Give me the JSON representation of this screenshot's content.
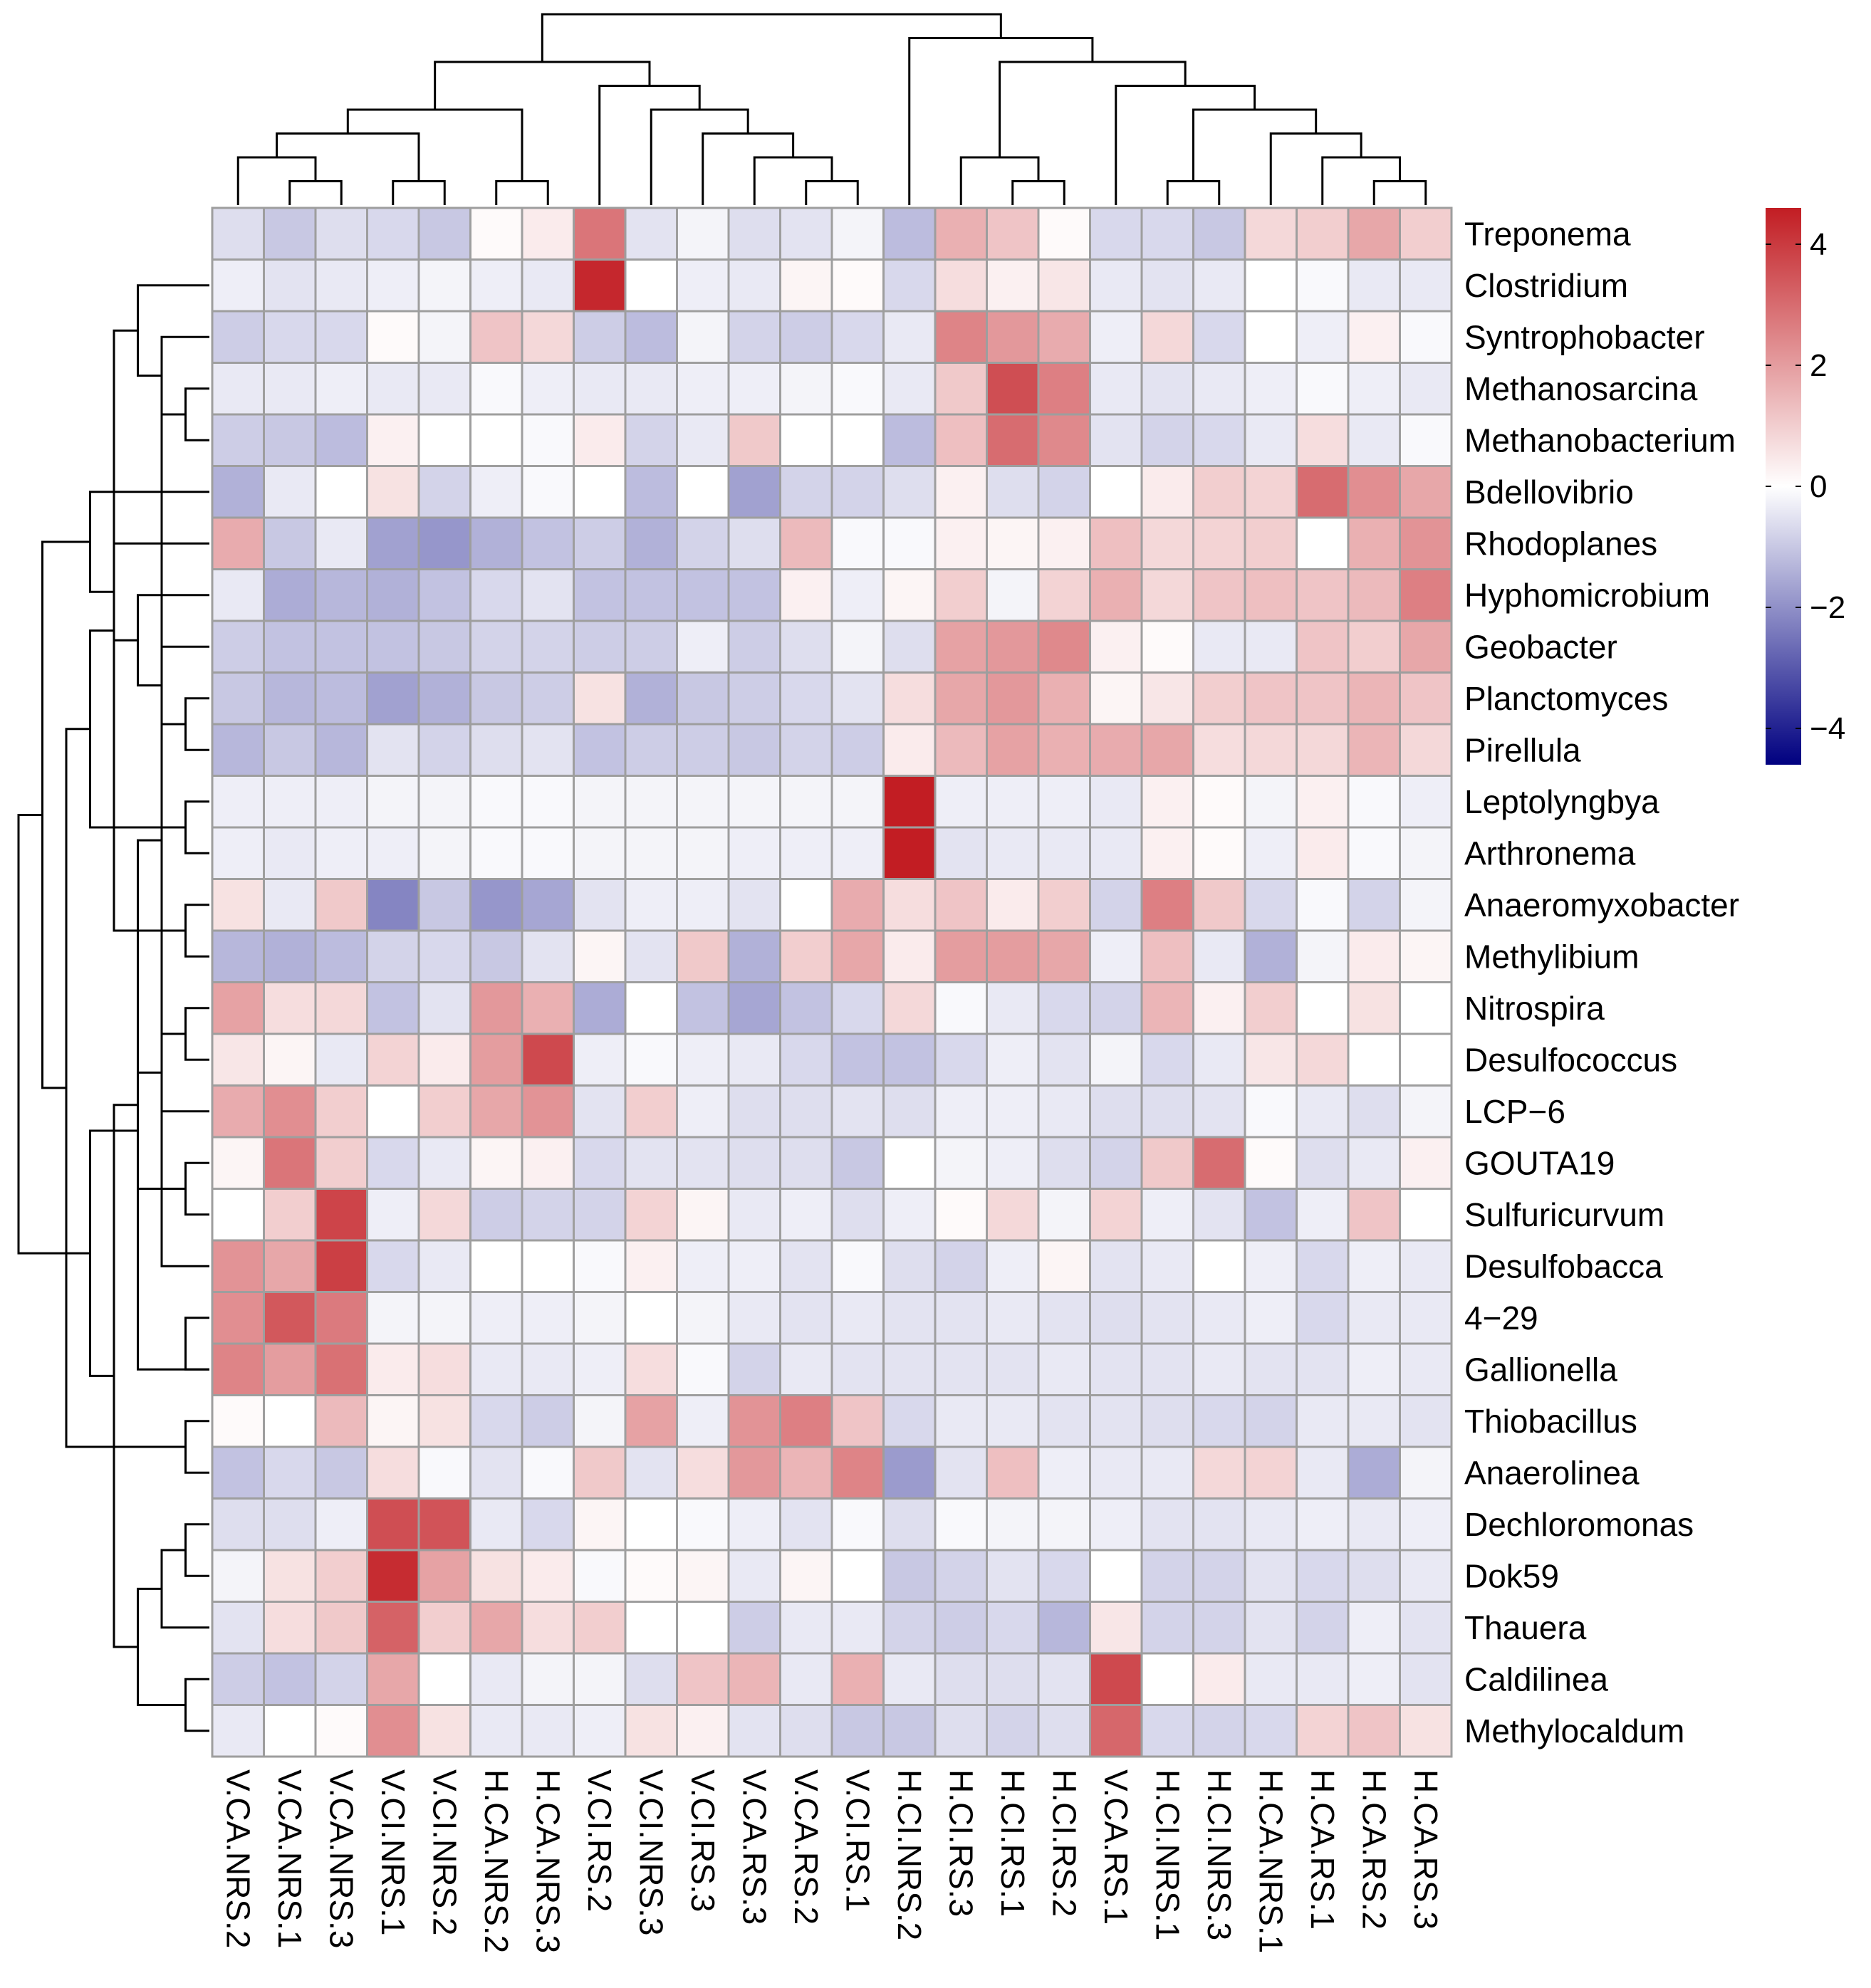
{
  "chart_data": {
    "type": "heatmap",
    "title": "",
    "clustered": true,
    "row_labels": [
      "Treponema",
      "Clostridium",
      "Syntrophobacter",
      "Methanosarcina",
      "Methanobacterium",
      "Bdellovibrio",
      "Rhodoplanes",
      "Hyphomicrobium",
      "Geobacter",
      "Planctomyces",
      "Pirellula",
      "Leptolyngbya",
      "Arthronema",
      "Anaeromyxobacter",
      "Methylibium",
      "Nitrospira",
      "Desulfococcus",
      "LCP−6",
      "GOUTA19",
      "Sulfuricurvum",
      "Desulfobacca",
      "4−29",
      "Gallionella",
      "Thiobacillus",
      "Anaerolinea",
      "Dechloromonas",
      "Dok59",
      "Thauera",
      "Caldilinea",
      "Methylocaldum"
    ],
    "col_labels": [
      "V.CA.NRS.2",
      "V.CA.NRS.1",
      "V.CA.NRS.3",
      "V.CI.NRS.1",
      "V.CI.NRS.2",
      "H.CA.NRS.2",
      "H.CA.NRS.3",
      "V.CI.RS.2",
      "V.CI.NRS.3",
      "V.CI.RS.3",
      "V.CA.RS.3",
      "V.CA.RS.2",
      "V.CI.RS.1",
      "H.CI.NRS.2",
      "H.CI.RS.3",
      "H.CI.RS.1",
      "H.CI.RS.2",
      "V.CA.RS.1",
      "H.CI.NRS.1",
      "H.CI.NRS.3",
      "H.CA.NRS.1",
      "H.CA.RS.1",
      "H.CA.RS.2",
      "H.CA.RS.3"
    ],
    "values": [
      [
        -0.6,
        -1.0,
        -0.6,
        -0.7,
        -1.0,
        0.1,
        0.4,
        2.8,
        -0.5,
        -0.2,
        -0.6,
        -0.5,
        -0.2,
        -1.2,
        1.6,
        1.2,
        0.1,
        -0.7,
        -0.7,
        -1.0,
        0.8,
        1.0,
        1.8,
        1.0
      ],
      [
        -0.3,
        -0.5,
        -0.4,
        -0.3,
        -0.2,
        -0.3,
        -0.4,
        4.4,
        0.0,
        -0.3,
        -0.4,
        0.2,
        0.1,
        -0.7,
        0.7,
        0.3,
        0.5,
        -0.4,
        -0.5,
        -0.4,
        0.0,
        -0.1,
        -0.4,
        -0.4
      ],
      [
        -0.9,
        -0.7,
        -0.7,
        0.1,
        -0.2,
        1.2,
        0.8,
        -0.9,
        -1.2,
        -0.2,
        -0.8,
        -0.9,
        -0.7,
        -0.4,
        2.5,
        2.1,
        1.7,
        -0.3,
        0.8,
        -0.7,
        0.0,
        -0.3,
        0.3,
        -0.1
      ],
      [
        -0.4,
        -0.4,
        -0.3,
        -0.4,
        -0.4,
        -0.1,
        -0.3,
        -0.4,
        -0.4,
        -0.3,
        -0.3,
        -0.2,
        -0.1,
        -0.4,
        1.1,
        3.6,
        2.6,
        -0.4,
        -0.5,
        -0.4,
        -0.3,
        -0.1,
        -0.3,
        -0.4
      ],
      [
        -0.9,
        -1.0,
        -1.2,
        0.3,
        0.0,
        0.0,
        -0.1,
        0.4,
        -0.8,
        -0.4,
        1.1,
        0.0,
        0.0,
        -1.2,
        1.3,
        3.0,
        2.4,
        -0.5,
        -0.8,
        -0.7,
        -0.4,
        0.7,
        -0.4,
        -0.1
      ],
      [
        -1.4,
        -0.4,
        0.0,
        0.6,
        -0.8,
        -0.3,
        -0.1,
        0.0,
        -1.2,
        0.0,
        -1.7,
        -0.8,
        -0.8,
        -0.6,
        0.3,
        -0.6,
        -0.8,
        0.0,
        0.4,
        1.0,
        0.9,
        3.0,
        2.3,
        1.8
      ],
      [
        1.7,
        -1.0,
        -0.4,
        -1.7,
        -1.9,
        -1.4,
        -1.1,
        -0.9,
        -1.4,
        -0.8,
        -0.6,
        1.4,
        -0.1,
        -0.1,
        0.3,
        0.2,
        0.3,
        1.3,
        0.8,
        0.9,
        1.0,
        0.0,
        1.6,
        2.2
      ],
      [
        -0.4,
        -1.5,
        -1.3,
        -1.4,
        -1.1,
        -0.7,
        -0.5,
        -1.1,
        -1.1,
        -1.1,
        -1.1,
        0.3,
        -0.3,
        0.2,
        1.0,
        -0.2,
        0.9,
        1.6,
        0.8,
        1.2,
        1.3,
        1.2,
        1.4,
        2.6
      ],
      [
        -0.9,
        -1.1,
        -1.1,
        -1.1,
        -1.0,
        -0.8,
        -0.8,
        -0.9,
        -0.9,
        -0.3,
        -0.9,
        -0.6,
        -0.2,
        -0.6,
        1.9,
        2.1,
        2.4,
        0.3,
        0.1,
        -0.4,
        -0.4,
        1.2,
        1.0,
        1.8
      ],
      [
        -1.0,
        -1.3,
        -1.2,
        -1.7,
        -1.4,
        -1.0,
        -0.9,
        0.6,
        -1.4,
        -1.0,
        -0.9,
        -0.7,
        -0.5,
        0.7,
        1.8,
        2.1,
        1.6,
        0.2,
        0.5,
        1.0,
        1.2,
        1.2,
        1.5,
        1.2
      ],
      [
        -1.3,
        -1.0,
        -1.3,
        -0.5,
        -0.8,
        -0.6,
        -0.5,
        -1.1,
        -0.9,
        -0.9,
        -1.0,
        -0.8,
        -0.9,
        0.4,
        1.4,
        1.9,
        1.6,
        1.7,
        1.8,
        0.7,
        0.8,
        0.8,
        1.5,
        0.8
      ],
      [
        -0.3,
        -0.3,
        -0.3,
        -0.2,
        -0.2,
        -0.1,
        -0.1,
        -0.2,
        -0.2,
        -0.2,
        -0.2,
        -0.2,
        -0.2,
        4.6,
        -0.3,
        -0.3,
        -0.3,
        -0.4,
        0.3,
        0.1,
        -0.2,
        0.3,
        -0.1,
        -0.3
      ],
      [
        -0.3,
        -0.4,
        -0.3,
        -0.3,
        -0.2,
        -0.1,
        -0.1,
        -0.2,
        -0.2,
        -0.2,
        -0.3,
        -0.3,
        -0.3,
        4.6,
        -0.5,
        -0.4,
        -0.4,
        -0.4,
        0.3,
        0.1,
        -0.3,
        0.4,
        -0.1,
        -0.2
      ],
      [
        0.6,
        -0.4,
        1.1,
        -2.2,
        -1.0,
        -1.9,
        -1.6,
        -0.5,
        -0.3,
        -0.3,
        -0.5,
        0.0,
        1.7,
        0.7,
        1.2,
        0.4,
        1.0,
        -0.8,
        2.6,
        1.1,
        -0.7,
        -0.1,
        -0.8,
        -0.2
      ],
      [
        -1.3,
        -1.4,
        -1.2,
        -0.8,
        -0.7,
        -1.0,
        -0.5,
        0.2,
        -0.5,
        1.1,
        -1.4,
        1.0,
        1.8,
        0.4,
        2.0,
        2.0,
        1.8,
        -0.3,
        1.3,
        -0.4,
        -1.4,
        -0.2,
        0.4,
        0.2
      ],
      [
        1.9,
        0.7,
        0.8,
        -1.1,
        -0.5,
        2.1,
        1.6,
        -1.5,
        0.0,
        -1.1,
        -1.6,
        -1.1,
        -0.7,
        0.8,
        -0.1,
        -0.4,
        -0.7,
        -0.8,
        1.5,
        0.3,
        1.0,
        0.0,
        0.6,
        0.0
      ],
      [
        0.5,
        0.2,
        -0.4,
        0.9,
        0.4,
        2.0,
        3.7,
        -0.3,
        -0.1,
        -0.3,
        -0.4,
        -0.7,
        -1.1,
        -1.1,
        -0.7,
        -0.3,
        -0.5,
        -0.2,
        -0.7,
        -0.4,
        0.5,
        0.8,
        0.0,
        0.0
      ],
      [
        1.7,
        2.3,
        1.0,
        0.0,
        1.0,
        1.8,
        2.2,
        -0.5,
        1.0,
        -0.3,
        -0.6,
        -0.6,
        -0.5,
        -0.6,
        -0.3,
        -0.3,
        -0.4,
        -0.6,
        -0.6,
        -0.5,
        -0.1,
        -0.4,
        -0.6,
        -0.2
      ],
      [
        0.2,
        2.8,
        1.0,
        -0.7,
        -0.4,
        0.2,
        0.3,
        -0.7,
        -0.5,
        -0.5,
        -0.6,
        -0.6,
        -1.0,
        0.0,
        -0.2,
        -0.3,
        -0.6,
        -0.8,
        1.1,
        3.0,
        0.1,
        -0.6,
        -0.4,
        0.3
      ],
      [
        0.0,
        1.0,
        3.8,
        -0.3,
        0.8,
        -0.9,
        -0.8,
        -0.8,
        0.9,
        0.2,
        -0.4,
        -0.3,
        -0.6,
        -0.3,
        0.1,
        0.8,
        -0.2,
        0.9,
        -0.3,
        -0.5,
        -1.1,
        -0.3,
        1.2,
        0.0
      ],
      [
        2.2,
        1.8,
        3.9,
        -0.7,
        -0.4,
        0.0,
        0.0,
        -0.1,
        0.3,
        -0.3,
        -0.3,
        -0.5,
        -0.1,
        -0.6,
        -0.8,
        -0.3,
        0.2,
        -0.5,
        -0.4,
        0.0,
        -0.3,
        -0.7,
        -0.3,
        -0.4
      ],
      [
        2.3,
        3.4,
        2.7,
        -0.2,
        -0.2,
        -0.3,
        -0.3,
        -0.2,
        0.0,
        -0.2,
        -0.4,
        -0.5,
        -0.4,
        -0.5,
        -0.5,
        -0.4,
        -0.5,
        -0.6,
        -0.5,
        -0.4,
        -0.3,
        -0.7,
        -0.4,
        -0.4
      ],
      [
        2.5,
        2.0,
        2.9,
        0.4,
        0.7,
        -0.4,
        -0.4,
        -0.3,
        0.7,
        -0.1,
        -0.8,
        -0.4,
        -0.5,
        -0.5,
        -0.5,
        -0.5,
        -0.4,
        -0.5,
        -0.5,
        -0.4,
        -0.5,
        -0.5,
        -0.3,
        -0.4
      ],
      [
        0.1,
        0.0,
        1.4,
        0.2,
        0.6,
        -0.7,
        -0.9,
        -0.2,
        1.9,
        -0.3,
        2.2,
        2.6,
        1.2,
        -0.7,
        -0.4,
        -0.4,
        -0.5,
        -0.5,
        -0.6,
        -0.7,
        -0.8,
        -0.4,
        -0.4,
        -0.5
      ],
      [
        -1.1,
        -0.7,
        -1.0,
        0.7,
        -0.1,
        -0.5,
        -0.1,
        1.1,
        -0.5,
        0.7,
        2.1,
        1.5,
        2.5,
        -1.8,
        -0.5,
        1.3,
        -0.3,
        -0.4,
        -0.4,
        0.8,
        0.9,
        -0.4,
        -1.5,
        -0.2
      ],
      [
        -0.6,
        -0.6,
        -0.3,
        3.6,
        3.5,
        -0.4,
        -0.7,
        0.2,
        0.0,
        -0.1,
        -0.3,
        -0.5,
        -0.1,
        -0.6,
        -0.1,
        -0.2,
        -0.2,
        -0.3,
        -0.5,
        -0.5,
        -0.4,
        -0.3,
        -0.4,
        -0.3
      ],
      [
        -0.2,
        0.6,
        1.0,
        4.3,
        1.9,
        0.6,
        0.4,
        -0.1,
        0.1,
        0.2,
        -0.4,
        0.2,
        0.0,
        -1.0,
        -0.8,
        -0.5,
        -0.7,
        0.0,
        -0.8,
        -0.8,
        -0.5,
        -0.7,
        -0.6,
        -0.4
      ],
      [
        -0.5,
        0.7,
        1.1,
        3.2,
        1.0,
        1.8,
        0.7,
        1.0,
        0.0,
        0.0,
        -0.9,
        -0.4,
        -0.4,
        -0.8,
        -0.9,
        -0.7,
        -1.3,
        0.5,
        -0.8,
        -0.8,
        -0.5,
        -0.8,
        -0.3,
        -0.5
      ],
      [
        -0.9,
        -1.1,
        -0.8,
        1.8,
        0.0,
        -0.4,
        -0.2,
        -0.2,
        -0.6,
        1.2,
        1.5,
        -0.4,
        1.6,
        -0.4,
        -0.6,
        -0.6,
        -0.5,
        3.7,
        0.0,
        0.4,
        -0.4,
        -0.4,
        -0.3,
        -0.5
      ],
      [
        -0.4,
        0.0,
        0.1,
        2.3,
        0.6,
        -0.4,
        -0.4,
        -0.3,
        0.6,
        0.3,
        -0.5,
        -0.6,
        -1.0,
        -1.0,
        -0.6,
        -0.8,
        -0.6,
        3.1,
        -0.7,
        -0.8,
        -0.7,
        0.9,
        1.2,
        0.6
      ]
    ],
    "color_scale": {
      "min": -4.6,
      "max": 4.6,
      "low_color": "#000080",
      "mid_color": "#ffffff",
      "high_color": "#c21d23"
    },
    "legend": {
      "position": "right",
      "ticks": [
        4,
        2,
        0,
        -2,
        -4
      ],
      "tick_labels": [
        "4",
        "2",
        "0",
        "−2",
        "−4"
      ]
    },
    "row_dendrogram": [
      [
        11,
        12
      ],
      [
        3,
        4
      ],
      [
        9,
        10
      ],
      [
        15,
        16
      ],
      [
        21,
        22
      ],
      [
        20,
        -2
      ],
      [
        23,
        24
      ],
      [
        25,
        26
      ],
      [
        28,
        29
      ],
      [
        2,
        -2
      ],
      [
        8,
        -3
      ],
      [
        13,
        14
      ],
      [
        -6,
        22
      ],
      [
        -8,
        27
      ],
      [
        1,
        -10
      ],
      [
        7,
        -11
      ],
      [
        -4,
        17
      ],
      [
        6,
        -16
      ],
      [
        18,
        19
      ],
      [
        -14,
        -9
      ],
      [
        -12,
        -15
      ],
      [
        -17,
        -19
      ],
      [
        5,
        -18
      ],
      [
        -20,
        -13
      ],
      [
        -1,
        -21
      ],
      [
        -24,
        -22
      ],
      [
        -7,
        -25
      ],
      [
        -23,
        -27
      ],
      [
        -26,
        -28
      ]
    ],
    "col_dendrogram": [
      [
        15,
        16
      ],
      [
        5,
        6
      ],
      [
        22,
        23
      ],
      [
        11,
        12
      ],
      [
        1,
        2
      ],
      [
        0,
        -5
      ],
      [
        3,
        4
      ],
      [
        10,
        -4
      ],
      [
        -3,
        21
      ],
      [
        18,
        19
      ],
      [
        -1,
        14
      ],
      [
        9,
        -8
      ],
      [
        8,
        -12
      ],
      [
        20,
        -9
      ],
      [
        -6,
        -7
      ],
      [
        -10,
        -14
      ],
      [
        7,
        -13
      ],
      [
        -2,
        -15
      ],
      [
        17,
        -16
      ],
      [
        -11,
        -19
      ],
      [
        13,
        -20
      ],
      [
        -18,
        -17
      ],
      [
        -22,
        -21
      ]
    ]
  }
}
